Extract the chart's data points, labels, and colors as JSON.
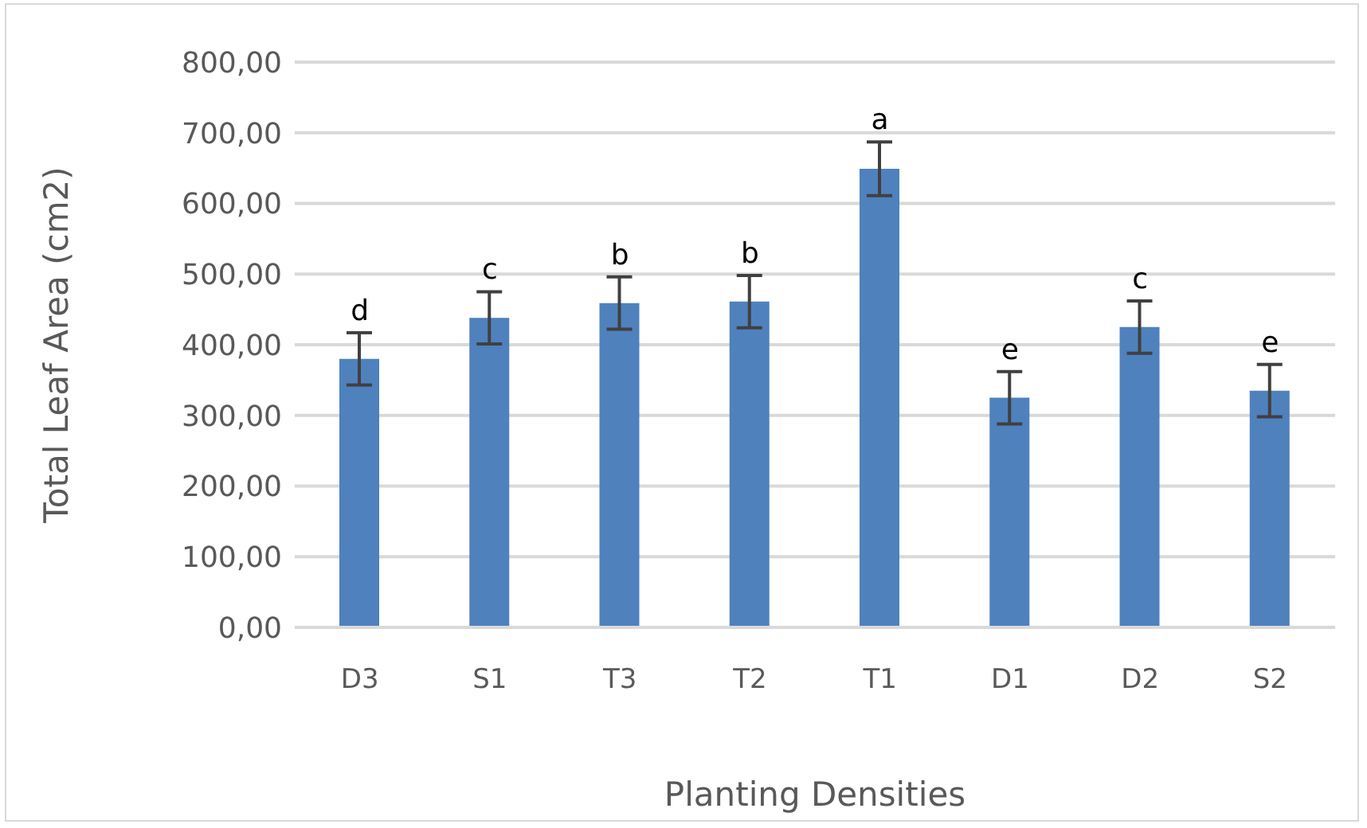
{
  "chart_data": {
    "type": "bar",
    "xlabel": "Planting Densities",
    "ylabel": "Total Leaf Area (cm2)",
    "categories": [
      "D3",
      "S1",
      "T3",
      "T2",
      "T1",
      "D1",
      "D2",
      "S2"
    ],
    "values": [
      380,
      438,
      459,
      461,
      649,
      325,
      425,
      335
    ],
    "errors": [
      37,
      37,
      37,
      37,
      38,
      37,
      37,
      37
    ],
    "color": "#4f81bd",
    "ylim": [
      0,
      800
    ],
    "yticks": [
      {
        "value": 0,
        "label": "0,00"
      },
      {
        "value": 100,
        "label": "100,00"
      },
      {
        "value": 200,
        "label": "200,00"
      },
      {
        "value": 300,
        "label": "300,00"
      },
      {
        "value": 400,
        "label": "400,00"
      },
      {
        "value": 500,
        "label": "500,00"
      },
      {
        "value": 600,
        "label": "600,00"
      },
      {
        "value": 700,
        "label": "700,00"
      },
      {
        "value": 800,
        "label": "800,00"
      }
    ],
    "grid": "y",
    "annotations": [
      {
        "text": "d",
        "x": "D3",
        "y": 417
      },
      {
        "text": "c",
        "x": "S1",
        "y": 475
      },
      {
        "text": "b",
        "x": "T3",
        "y": 496
      },
      {
        "text": "b",
        "x": "T2",
        "y": 498
      },
      {
        "text": "a",
        "x": "T1",
        "y": 687
      },
      {
        "text": "e",
        "x": "D1",
        "y": 362
      },
      {
        "text": "c",
        "x": "D2",
        "y": 462
      },
      {
        "text": "e",
        "x": "S2",
        "y": 372
      }
    ]
  }
}
